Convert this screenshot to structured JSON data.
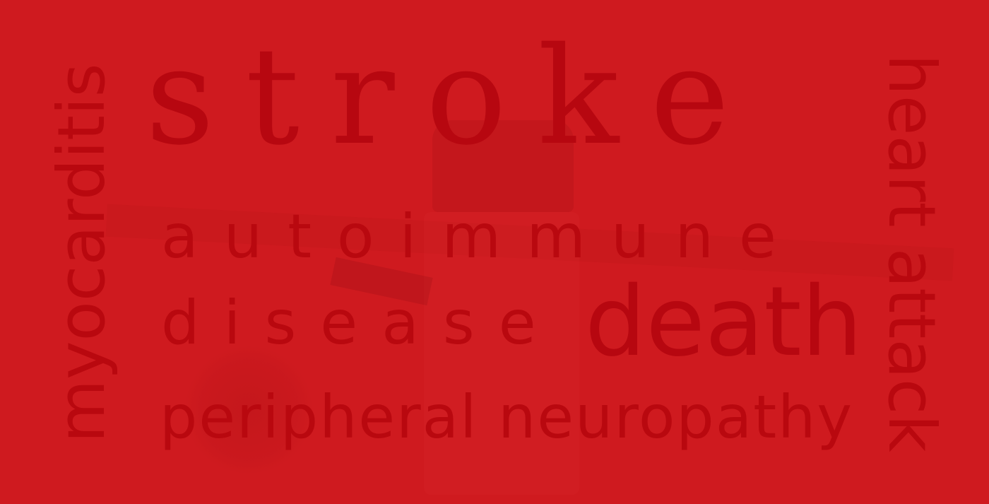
{
  "words": {
    "stroke": "stroke",
    "autoimmune": "autoimmune",
    "disease": "disease",
    "death": "death",
    "peripheral_neuropathy": "peripheral neuropathy",
    "myocarditis": "myocarditis",
    "heart_attack": "heart attack"
  },
  "colors": {
    "background": "#cf1a1f",
    "text": "#b9080f"
  }
}
